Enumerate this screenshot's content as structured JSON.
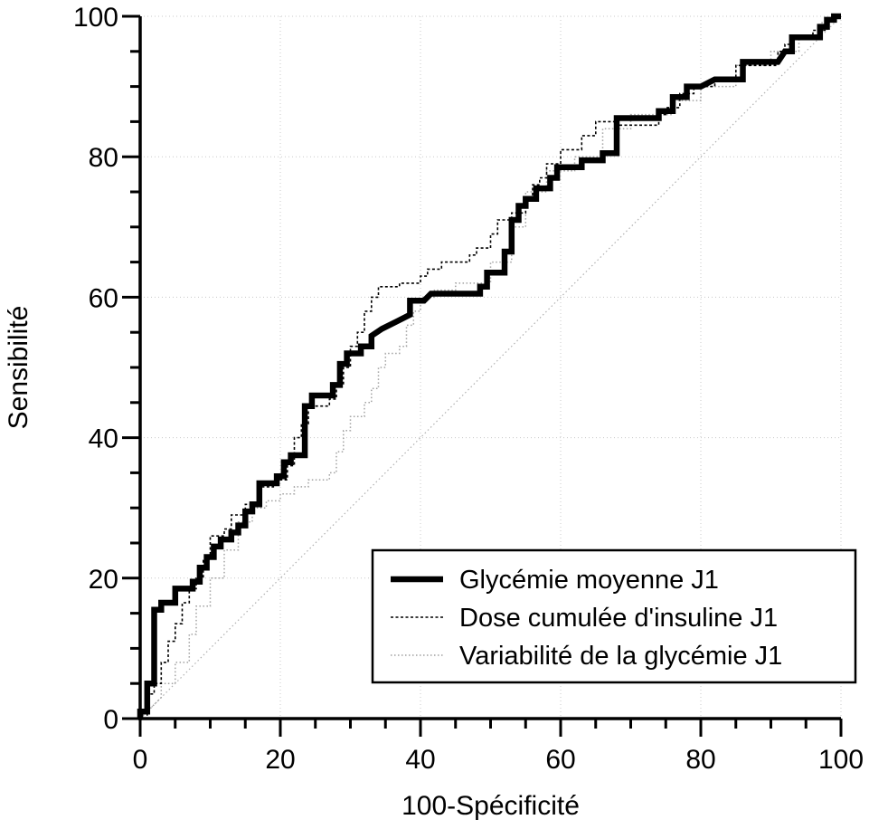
{
  "chart_data": {
    "type": "line",
    "title": "",
    "xlabel": "100-Spécificité",
    "ylabel": "Sensibilité",
    "xlim": [
      0,
      100
    ],
    "ylim": [
      0,
      100
    ],
    "x_ticks": [
      "0",
      "20",
      "40",
      "60",
      "80",
      "100"
    ],
    "y_ticks": [
      "0",
      "20",
      "40",
      "60",
      "80",
      "100"
    ],
    "grid": true,
    "legend_position": "bottom-right",
    "series": [
      {
        "name": "Glycémie moyenne J1",
        "style": "solid-thick",
        "color": "#000000",
        "points": [
          [
            0,
            0
          ],
          [
            0,
            1
          ],
          [
            1,
            1
          ],
          [
            1,
            5
          ],
          [
            2,
            5
          ],
          [
            2,
            15.5
          ],
          [
            3,
            15.5
          ],
          [
            3,
            16.5
          ],
          [
            5,
            16.5
          ],
          [
            5,
            18.5
          ],
          [
            7.5,
            18.5
          ],
          [
            7.5,
            19.5
          ],
          [
            8.5,
            19.5
          ],
          [
            8.5,
            21.5
          ],
          [
            9.5,
            21.5
          ],
          [
            9.5,
            23
          ],
          [
            10.5,
            23
          ],
          [
            10.5,
            24.5
          ],
          [
            11.5,
            24.5
          ],
          [
            11.5,
            25.5
          ],
          [
            13,
            25.5
          ],
          [
            13,
            26.5
          ],
          [
            14,
            26.5
          ],
          [
            14,
            27.5
          ],
          [
            15,
            27.5
          ],
          [
            15,
            29.5
          ],
          [
            16,
            29.5
          ],
          [
            16,
            30.5
          ],
          [
            17,
            30.5
          ],
          [
            17,
            33.5
          ],
          [
            19.5,
            33.5
          ],
          [
            19.5,
            34.5
          ],
          [
            20.5,
            34.5
          ],
          [
            20.5,
            36.5
          ],
          [
            21.5,
            36.5
          ],
          [
            21.5,
            37.5
          ],
          [
            23.5,
            37.5
          ],
          [
            23.5,
            44.5
          ],
          [
            24.5,
            44.5
          ],
          [
            24.5,
            46
          ],
          [
            27.5,
            46
          ],
          [
            27.5,
            47.5
          ],
          [
            28.5,
            47.5
          ],
          [
            28.5,
            50.5
          ],
          [
            29.5,
            50.5
          ],
          [
            29.5,
            52
          ],
          [
            31.5,
            52
          ],
          [
            31.5,
            53
          ],
          [
            33,
            53
          ],
          [
            33,
            54.5
          ],
          [
            34.5,
            55.5
          ],
          [
            36.5,
            56.5
          ],
          [
            38.5,
            57.5
          ],
          [
            38.5,
            59.5
          ],
          [
            40.5,
            59.5
          ],
          [
            41.5,
            60.5
          ],
          [
            48.5,
            60.5
          ],
          [
            48.5,
            61.5
          ],
          [
            49.5,
            61.5
          ],
          [
            49.5,
            63.5
          ],
          [
            52,
            63.5
          ],
          [
            52,
            66.5
          ],
          [
            53,
            66.5
          ],
          [
            53,
            71
          ],
          [
            54,
            71
          ],
          [
            54,
            73
          ],
          [
            55,
            73
          ],
          [
            55,
            74
          ],
          [
            56.5,
            74
          ],
          [
            56.5,
            75.5
          ],
          [
            58.5,
            75.5
          ],
          [
            58.5,
            77
          ],
          [
            59.5,
            77
          ],
          [
            59.5,
            78.5
          ],
          [
            63,
            78.5
          ],
          [
            63,
            79.5
          ],
          [
            66,
            79.5
          ],
          [
            66,
            80.5
          ],
          [
            68,
            80.5
          ],
          [
            68,
            85.5
          ],
          [
            74,
            85.5
          ],
          [
            74,
            86.5
          ],
          [
            76,
            86.5
          ],
          [
            76,
            88.5
          ],
          [
            78,
            88.5
          ],
          [
            78,
            90
          ],
          [
            80,
            90
          ],
          [
            82,
            91
          ],
          [
            86,
            91
          ],
          [
            86,
            93.5
          ],
          [
            91,
            93.5
          ],
          [
            92,
            95
          ],
          [
            93,
            95
          ],
          [
            93,
            97
          ],
          [
            97,
            97
          ],
          [
            97,
            98.5
          ],
          [
            98,
            98.5
          ],
          [
            98,
            99.5
          ],
          [
            99,
            99.5
          ],
          [
            99,
            100
          ],
          [
            100,
            100
          ]
        ]
      },
      {
        "name": "Dose cumulée d'insuline J1",
        "style": "dashed",
        "color": "#000000",
        "points": [
          [
            0,
            0
          ],
          [
            1,
            0
          ],
          [
            1,
            3.5
          ],
          [
            2,
            3.5
          ],
          [
            2,
            5
          ],
          [
            3,
            5
          ],
          [
            3,
            8
          ],
          [
            4,
            8
          ],
          [
            4,
            11
          ],
          [
            5,
            11
          ],
          [
            5,
            13.5
          ],
          [
            6,
            13.5
          ],
          [
            6,
            16.5
          ],
          [
            7,
            16.5
          ],
          [
            7,
            18.5
          ],
          [
            8,
            18.5
          ],
          [
            8,
            20
          ],
          [
            9,
            20
          ],
          [
            9,
            22.5
          ],
          [
            10,
            22.5
          ],
          [
            10,
            26
          ],
          [
            12,
            26
          ],
          [
            12,
            27
          ],
          [
            13,
            27
          ],
          [
            13,
            29
          ],
          [
            15,
            29
          ],
          [
            15,
            30.5
          ],
          [
            17,
            30.5
          ],
          [
            17,
            33
          ],
          [
            19,
            33
          ],
          [
            19,
            34
          ],
          [
            21,
            34
          ],
          [
            21,
            36
          ],
          [
            22,
            36
          ],
          [
            22,
            40
          ],
          [
            23,
            40
          ],
          [
            23,
            42
          ],
          [
            24,
            42
          ],
          [
            24,
            44.5
          ],
          [
            27,
            44.5
          ],
          [
            27,
            45.5
          ],
          [
            28,
            45.5
          ],
          [
            28,
            47.5
          ],
          [
            29,
            47.5
          ],
          [
            29,
            50
          ],
          [
            30,
            50
          ],
          [
            30,
            53
          ],
          [
            31,
            53
          ],
          [
            31,
            55
          ],
          [
            32,
            55
          ],
          [
            32,
            58
          ],
          [
            33,
            58
          ],
          [
            33,
            60
          ],
          [
            34,
            60
          ],
          [
            34,
            61.5
          ],
          [
            37,
            61.5
          ],
          [
            37,
            62
          ],
          [
            40,
            62
          ],
          [
            40,
            63
          ],
          [
            41,
            63
          ],
          [
            41,
            64
          ],
          [
            43,
            64
          ],
          [
            43,
            65
          ],
          [
            47,
            65
          ],
          [
            47,
            66
          ],
          [
            48,
            66
          ],
          [
            48,
            67
          ],
          [
            50,
            67
          ],
          [
            50,
            69
          ],
          [
            51,
            69
          ],
          [
            51,
            71
          ],
          [
            53,
            71
          ],
          [
            53,
            72
          ],
          [
            55,
            72
          ],
          [
            55,
            74
          ],
          [
            56,
            74
          ],
          [
            56,
            76
          ],
          [
            57,
            76
          ],
          [
            57,
            77
          ],
          [
            58,
            77
          ],
          [
            58,
            79
          ],
          [
            60,
            79
          ],
          [
            60,
            81
          ],
          [
            63,
            81
          ],
          [
            63,
            83
          ],
          [
            65,
            83
          ],
          [
            65,
            85
          ],
          [
            68,
            85
          ],
          [
            68,
            84.5
          ],
          [
            74,
            84.5
          ],
          [
            74,
            86
          ],
          [
            75,
            86
          ],
          [
            75,
            87
          ],
          [
            77,
            87
          ],
          [
            77,
            89
          ],
          [
            79,
            89
          ],
          [
            79,
            90
          ],
          [
            82,
            90
          ],
          [
            82,
            91
          ],
          [
            85,
            91
          ],
          [
            85,
            93
          ],
          [
            91,
            93
          ],
          [
            91,
            95
          ],
          [
            92,
            95
          ],
          [
            92,
            96
          ],
          [
            93,
            96
          ],
          [
            93,
            97
          ],
          [
            96,
            97
          ],
          [
            96,
            98
          ],
          [
            98,
            98
          ],
          [
            98,
            99
          ],
          [
            100,
            100
          ]
        ]
      },
      {
        "name": "Variabilité de la glycémie J1",
        "style": "dotted",
        "color": "#000000",
        "points": [
          [
            0,
            0
          ],
          [
            2,
            2
          ],
          [
            3,
            3
          ],
          [
            3,
            5
          ],
          [
            5,
            5
          ],
          [
            5,
            8
          ],
          [
            7,
            8
          ],
          [
            7,
            12
          ],
          [
            8,
            12
          ],
          [
            8,
            16
          ],
          [
            10,
            16
          ],
          [
            10,
            20
          ],
          [
            12,
            20
          ],
          [
            12,
            24
          ],
          [
            14,
            24
          ],
          [
            14,
            28
          ],
          [
            16,
            28
          ],
          [
            16,
            30
          ],
          [
            18,
            30
          ],
          [
            18,
            31
          ],
          [
            20,
            31
          ],
          [
            20,
            32
          ],
          [
            22,
            32
          ],
          [
            22,
            33
          ],
          [
            24,
            33
          ],
          [
            24,
            34
          ],
          [
            27,
            34
          ],
          [
            27,
            35
          ],
          [
            28,
            35
          ],
          [
            28,
            38
          ],
          [
            29,
            38
          ],
          [
            29,
            41
          ],
          [
            30,
            41
          ],
          [
            30,
            43
          ],
          [
            32,
            43
          ],
          [
            32,
            45
          ],
          [
            33,
            45
          ],
          [
            33,
            47
          ],
          [
            34,
            47
          ],
          [
            34,
            50
          ],
          [
            35,
            50
          ],
          [
            35,
            52
          ],
          [
            37,
            52
          ],
          [
            37,
            53
          ],
          [
            38,
            53
          ],
          [
            38,
            56
          ],
          [
            39,
            56
          ],
          [
            39,
            58
          ],
          [
            40,
            58
          ],
          [
            40,
            60
          ],
          [
            42,
            60
          ],
          [
            42,
            61
          ],
          [
            45,
            61
          ],
          [
            45,
            62
          ],
          [
            50,
            62
          ],
          [
            50,
            65
          ],
          [
            53,
            65
          ],
          [
            53,
            70
          ],
          [
            55,
            70
          ],
          [
            55,
            75
          ],
          [
            58,
            75
          ],
          [
            58,
            78
          ],
          [
            62,
            78
          ],
          [
            62,
            80
          ],
          [
            66,
            80
          ],
          [
            66,
            84
          ],
          [
            70,
            84
          ],
          [
            70,
            86
          ],
          [
            76,
            86
          ],
          [
            76,
            88
          ],
          [
            80,
            88
          ],
          [
            80,
            90
          ],
          [
            85,
            90
          ],
          [
            85,
            93
          ],
          [
            90,
            93
          ],
          [
            90,
            95
          ],
          [
            94,
            95
          ],
          [
            94,
            97
          ],
          [
            97,
            97
          ],
          [
            97,
            99
          ],
          [
            100,
            100
          ]
        ]
      }
    ]
  }
}
